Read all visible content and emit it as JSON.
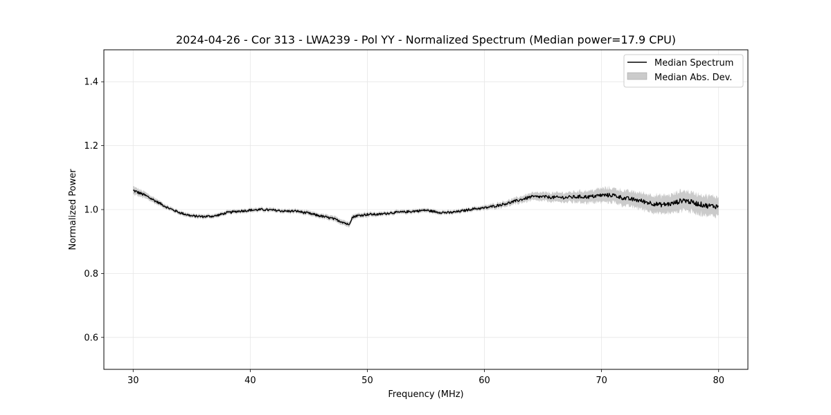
{
  "chart_data": {
    "type": "line",
    "title": "2024-04-26 - Cor 313 - LWA239 - Pol YY - Normalized Spectrum (Median power=17.9 CPU)",
    "xlabel": "Frequency (MHz)",
    "ylabel": "Normalized Power",
    "xlim": [
      27.5,
      82.5
    ],
    "ylim": [
      0.5,
      1.5
    ],
    "xticks": [
      30,
      40,
      50,
      60,
      70,
      80
    ],
    "yticks": [
      0.6,
      0.8,
      1.0,
      1.2,
      1.4
    ],
    "xtick_labels": [
      "30",
      "40",
      "50",
      "60",
      "70",
      "80"
    ],
    "ytick_labels": [
      "0.6",
      "0.8",
      "1.0",
      "1.2",
      "1.4"
    ],
    "grid": true,
    "legend_position": "top-right",
    "legend": [
      "Median Spectrum",
      "Median Abs. Dev."
    ],
    "colors": {
      "line": "#000000",
      "band": "#a9a9a9",
      "grid": "#e6e6e6"
    },
    "series": [
      {
        "name": "Median Spectrum",
        "x": [
          30,
          31,
          32,
          33,
          34,
          35,
          36,
          37,
          38,
          39,
          40,
          41,
          42,
          43,
          44,
          45,
          46,
          47,
          48,
          48.4,
          48.7,
          49,
          50,
          51,
          52,
          53,
          54,
          55,
          56,
          57,
          58,
          59,
          60,
          61,
          62,
          63,
          64,
          65,
          66,
          67,
          68,
          69,
          70,
          71,
          72,
          73,
          74,
          75,
          76,
          77,
          78,
          79,
          80
        ],
        "values": [
          1.06,
          1.045,
          1.025,
          1.005,
          0.99,
          0.98,
          0.978,
          0.98,
          0.99,
          0.995,
          0.998,
          1.0,
          0.998,
          0.995,
          0.995,
          0.988,
          0.98,
          0.972,
          0.96,
          0.952,
          0.975,
          0.98,
          0.985,
          0.985,
          0.99,
          0.992,
          0.995,
          0.998,
          0.992,
          0.99,
          0.995,
          1.002,
          1.005,
          1.012,
          1.02,
          1.03,
          1.04,
          1.04,
          1.038,
          1.038,
          1.04,
          1.04,
          1.045,
          1.045,
          1.035,
          1.03,
          1.022,
          1.015,
          1.018,
          1.03,
          1.02,
          1.012,
          1.01
        ]
      },
      {
        "name": "Median Abs. Dev.",
        "x": [
          30,
          31,
          32,
          33,
          34,
          35,
          36,
          37,
          38,
          39,
          40,
          41,
          42,
          43,
          44,
          45,
          46,
          47,
          48,
          48.4,
          48.7,
          49,
          50,
          51,
          52,
          53,
          54,
          55,
          56,
          57,
          58,
          59,
          60,
          61,
          62,
          63,
          64,
          65,
          66,
          67,
          68,
          69,
          70,
          71,
          72,
          73,
          74,
          75,
          76,
          77,
          78,
          79,
          80
        ],
        "values": [
          0.012,
          0.01,
          0.008,
          0.006,
          0.006,
          0.006,
          0.006,
          0.006,
          0.006,
          0.006,
          0.006,
          0.006,
          0.006,
          0.006,
          0.006,
          0.007,
          0.007,
          0.008,
          0.008,
          0.008,
          0.008,
          0.007,
          0.007,
          0.006,
          0.006,
          0.006,
          0.006,
          0.006,
          0.006,
          0.006,
          0.006,
          0.006,
          0.007,
          0.008,
          0.009,
          0.01,
          0.012,
          0.013,
          0.014,
          0.015,
          0.017,
          0.019,
          0.021,
          0.022,
          0.023,
          0.024,
          0.026,
          0.027,
          0.028,
          0.03,
          0.03,
          0.03,
          0.03
        ]
      }
    ]
  }
}
